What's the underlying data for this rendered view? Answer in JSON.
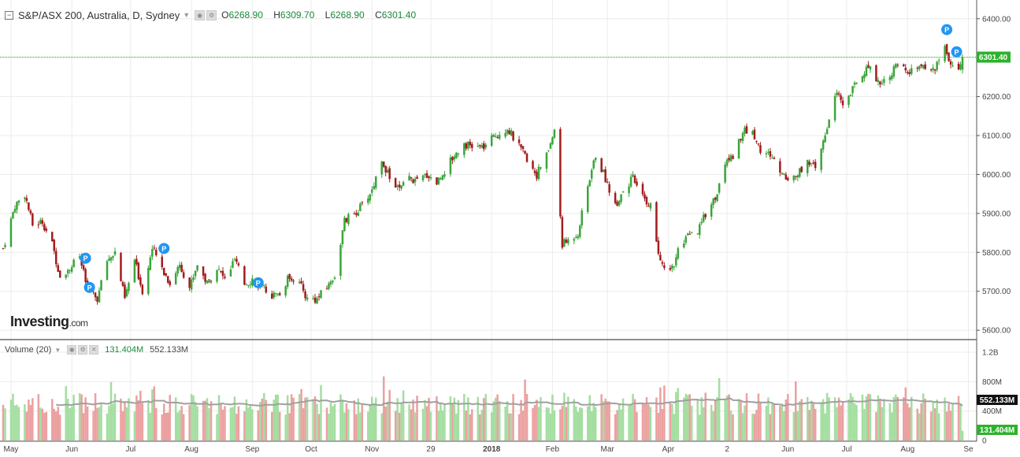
{
  "header": {
    "symbol": "S&P/ASX 200, Australia, D, Sydney",
    "open_label": "O",
    "open": "6268.90",
    "high_label": "H",
    "high": "6309.70",
    "low_label": "L",
    "low": "6268.90",
    "close_label": "C",
    "close": "6301.40"
  },
  "volume_header": {
    "name": "Volume (20)",
    "current": "131.404M",
    "average": "552.133M"
  },
  "logo": {
    "brand": "Investing",
    "suffix": ".com"
  },
  "colors": {
    "up": "#3aa53a",
    "down": "#a11d1d",
    "vol_up": "#a4dea1",
    "vol_down": "#eba1a1",
    "ma": "#a0a0a0",
    "last_line": "#2bb32b",
    "badge": "#2196f3"
  },
  "chart_data": [
    {
      "type": "candlestick",
      "title": "S&P/ASX 200, Australia, D, Sydney",
      "ylim": [
        5580,
        6440
      ],
      "y_ticks": [
        "6400.00",
        "6300.00",
        "6200.00",
        "6100.00",
        "6000.00",
        "5900.00",
        "5800.00",
        "5700.00",
        "5600.00"
      ],
      "x_ticks": [
        "May",
        "Jun",
        "Jul",
        "Aug",
        "Sep",
        "Oct",
        "Nov",
        "29",
        "2018",
        "Feb",
        "Mar",
        "Apr",
        "2",
        "Jun",
        "Jul",
        "Aug",
        "Se"
      ],
      "last_price_label": "6301.40",
      "grid": true,
      "close_path": [
        [
          "2017-04-27",
          5810
        ],
        [
          "2017-05-03",
          5920
        ],
        [
          "2017-05-08",
          5950
        ],
        [
          "2017-05-12",
          5870
        ],
        [
          "2017-05-17",
          5880
        ],
        [
          "2017-05-22",
          5820
        ],
        [
          "2017-05-26",
          5740
        ],
        [
          "2017-05-31",
          5760
        ],
        [
          "2017-06-05",
          5790
        ],
        [
          "2017-06-09",
          5700
        ],
        [
          "2017-06-14",
          5680
        ],
        [
          "2017-06-19",
          5780
        ],
        [
          "2017-06-23",
          5800
        ],
        [
          "2017-06-28",
          5680
        ],
        [
          "2017-07-03",
          5780
        ],
        [
          "2017-07-07",
          5700
        ],
        [
          "2017-07-12",
          5810
        ],
        [
          "2017-07-17",
          5760
        ],
        [
          "2017-07-21",
          5720
        ],
        [
          "2017-07-26",
          5770
        ],
        [
          "2017-07-31",
          5710
        ],
        [
          "2017-08-04",
          5770
        ],
        [
          "2017-08-09",
          5720
        ],
        [
          "2017-08-14",
          5760
        ],
        [
          "2017-08-18",
          5730
        ],
        [
          "2017-08-23",
          5780
        ],
        [
          "2017-08-28",
          5720
        ],
        [
          "2017-09-01",
          5730
        ],
        [
          "2017-09-06",
          5710
        ],
        [
          "2017-09-11",
          5690
        ],
        [
          "2017-09-15",
          5690
        ],
        [
          "2017-09-20",
          5740
        ],
        [
          "2017-09-25",
          5720
        ],
        [
          "2017-09-29",
          5680
        ],
        [
          "2017-10-04",
          5680
        ],
        [
          "2017-10-09",
          5710
        ],
        [
          "2017-10-13",
          5740
        ],
        [
          "2017-10-18",
          5880
        ],
        [
          "2017-10-23",
          5900
        ],
        [
          "2017-10-27",
          5920
        ],
        [
          "2017-11-01",
          5960
        ],
        [
          "2017-11-06",
          6040
        ],
        [
          "2017-11-10",
          5990
        ],
        [
          "2017-11-15",
          5960
        ],
        [
          "2017-11-20",
          5990
        ],
        [
          "2017-11-24",
          5980
        ],
        [
          "2017-11-29",
          6000
        ],
        [
          "2017-12-04",
          5980
        ],
        [
          "2017-12-08",
          6010
        ],
        [
          "2017-12-13",
          6050
        ],
        [
          "2017-12-18",
          6080
        ],
        [
          "2017-12-22",
          6070
        ],
        [
          "2017-12-28",
          6070
        ],
        [
          "2018-01-03",
          6100
        ],
        [
          "2018-01-09",
          6120
        ],
        [
          "2018-01-15",
          6070
        ],
        [
          "2018-01-19",
          6040
        ],
        [
          "2018-01-24",
          6000
        ],
        [
          "2018-01-29",
          6050
        ],
        [
          "2018-02-02",
          6110
        ],
        [
          "2018-02-06",
          5820
        ],
        [
          "2018-02-09",
          5830
        ],
        [
          "2018-02-14",
          5850
        ],
        [
          "2018-02-19",
          5970
        ],
        [
          "2018-02-23",
          6050
        ],
        [
          "2018-02-28",
          5990
        ],
        [
          "2018-03-05",
          5920
        ],
        [
          "2018-03-09",
          5960
        ],
        [
          "2018-03-14",
          5990
        ],
        [
          "2018-03-19",
          5940
        ],
        [
          "2018-03-23",
          5920
        ],
        [
          "2018-03-28",
          5770
        ],
        [
          "2018-04-03",
          5760
        ],
        [
          "2018-04-06",
          5800
        ],
        [
          "2018-04-11",
          5840
        ],
        [
          "2018-04-16",
          5850
        ],
        [
          "2018-04-20",
          5900
        ],
        [
          "2018-04-26",
          5950
        ],
        [
          "2018-04-30",
          6030
        ],
        [
          "2018-05-04",
          6050
        ],
        [
          "2018-05-09",
          6110
        ],
        [
          "2018-05-14",
          6110
        ],
        [
          "2018-05-18",
          6060
        ],
        [
          "2018-05-23",
          6050
        ],
        [
          "2018-05-28",
          6010
        ],
        [
          "2018-06-01",
          5990
        ],
        [
          "2018-06-06",
          6000
        ],
        [
          "2018-06-11",
          6040
        ],
        [
          "2018-06-15",
          6010
        ],
        [
          "2018-06-20",
          6100
        ],
        [
          "2018-06-25",
          6210
        ],
        [
          "2018-06-29",
          6180
        ],
        [
          "2018-07-04",
          6220
        ],
        [
          "2018-07-09",
          6260
        ],
        [
          "2018-07-13",
          6280
        ],
        [
          "2018-07-18",
          6230
        ],
        [
          "2018-07-23",
          6260
        ],
        [
          "2018-07-27",
          6280
        ],
        [
          "2018-08-01",
          6260
        ],
        [
          "2018-08-06",
          6270
        ],
        [
          "2018-08-10",
          6280
        ],
        [
          "2018-08-15",
          6270
        ],
        [
          "2018-08-20",
          6330
        ],
        [
          "2018-08-23",
          6280
        ],
        [
          "2018-08-27",
          6260
        ],
        [
          "2018-08-29",
          6301.4
        ]
      ]
    },
    {
      "type": "bar",
      "title": "Volume (20)",
      "ylim": [
        0,
        1350
      ],
      "y_ticks": [
        "1.2B",
        "800M",
        "400M",
        "0"
      ],
      "value_labels": [
        "552.133M",
        "131.404M"
      ],
      "typical_range_millions": [
        350,
        900
      ],
      "moving_average_millions": 552.133,
      "last_volume_millions": 131.404
    }
  ]
}
